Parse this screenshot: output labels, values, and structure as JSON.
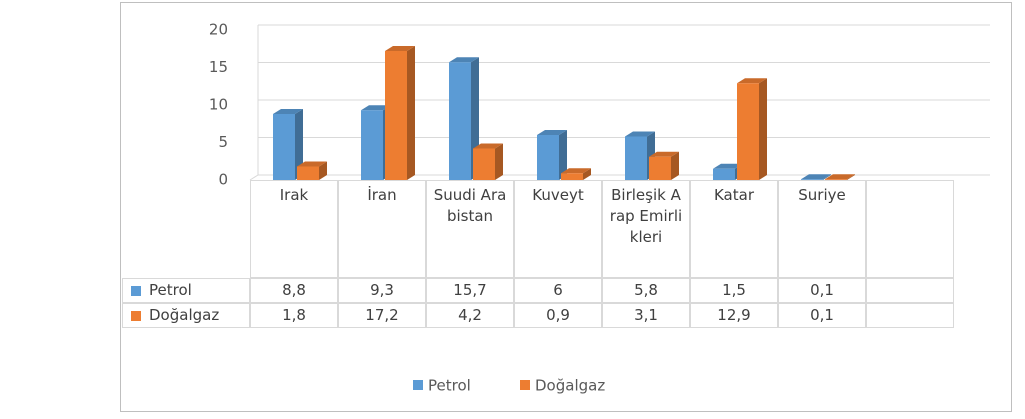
{
  "chart_data": {
    "type": "bar",
    "categories": [
      "Irak",
      "İran",
      "Suudi Arabistan",
      "Kuveyt",
      "Birleşik Arap Emirlikleri",
      "Katar",
      "Suriye",
      null
    ],
    "series": [
      {
        "name": "Petrol",
        "color": "#5b9bd5",
        "values": [
          8.8,
          9.3,
          15.7,
          6,
          5.8,
          1.5,
          0.1,
          null
        ],
        "value_labels": [
          "8,8",
          "9,3",
          "15,7",
          "6",
          "5,8",
          "1,5",
          "0,1",
          null
        ]
      },
      {
        "name": "Doğalgaz",
        "color": "#ed7d31",
        "values": [
          1.8,
          17.2,
          4.2,
          0.9,
          3.1,
          12.9,
          0.1,
          null
        ],
        "value_labels": [
          "1,8",
          "17,2",
          "4,2",
          "0,9",
          "3,1",
          "12,9",
          "0,1",
          null
        ]
      }
    ],
    "ylim": [
      0,
      20
    ],
    "yticks": [
      0,
      5,
      10,
      15,
      20
    ],
    "grid": true,
    "legend": "bottom"
  }
}
